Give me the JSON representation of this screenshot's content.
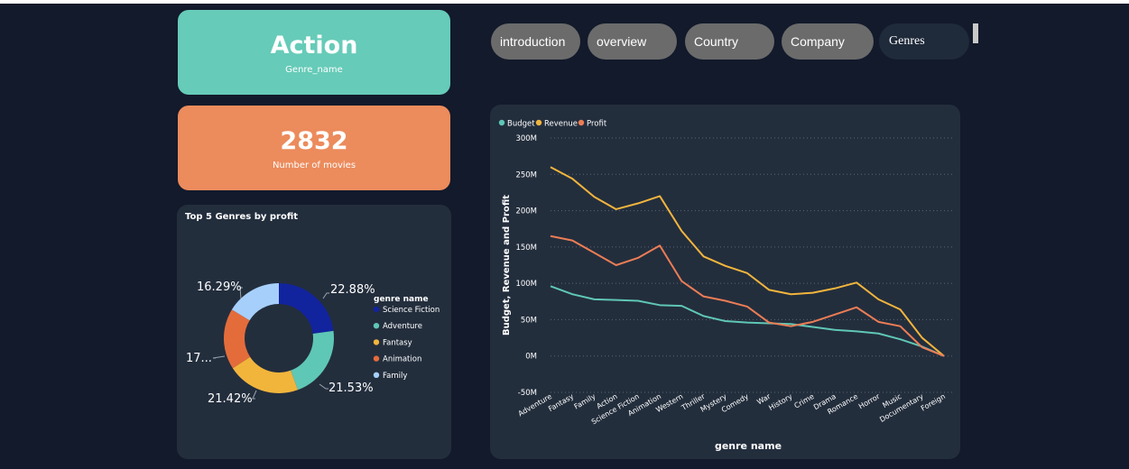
{
  "genre_card": {
    "value": "Action",
    "label": "Genre_name",
    "color": "#66cbb8"
  },
  "movies_card": {
    "value": "2832",
    "label": "Number of movies",
    "color": "#ec8b5c"
  },
  "tabs": [
    {
      "label": "introduction"
    },
    {
      "label": "overview"
    },
    {
      "label": "Country"
    },
    {
      "label": "Company"
    },
    {
      "label": "Genres"
    }
  ],
  "colors": {
    "background": "#121a2b",
    "panel": "#232e3d",
    "tab": "#6b6b6b",
    "tab_active": "#1f2a3a"
  },
  "chart_data": [
    {
      "type": "pie",
      "title": "Top 5 Genres by profit",
      "legend_title": "genre name",
      "legend_position": "right",
      "categories": [
        "Science Fiction",
        "Adventure",
        "Fantasy",
        "Animation",
        "Family"
      ],
      "values": [
        22.88,
        21.53,
        21.42,
        17.88,
        16.29
      ],
      "value_labels": [
        "22.88%",
        "21.53%",
        "21.42%",
        "17...",
        "16.29%"
      ],
      "colors": [
        "#12239e",
        "#5fc7b6",
        "#f2b53c",
        "#e46c3b",
        "#a7cffb"
      ]
    },
    {
      "type": "line",
      "title": "",
      "xlabel": "genre name",
      "ylabel": "Budget, Revenue and Profit",
      "ylim": [
        -50,
        300
      ],
      "y_ticks": [
        "300M",
        "250M",
        "200M",
        "150M",
        "100M",
        "50M",
        "0M",
        "-50M"
      ],
      "grid": true,
      "legend_position": "top-left",
      "categories": [
        "Adventure",
        "Fantasy",
        "Family",
        "Action",
        "Science Fiction",
        "Animation",
        "Western",
        "Thriller",
        "Mystery",
        "Comedy",
        "War",
        "History",
        "Crime",
        "Drama",
        "Romance",
        "Horror",
        "Music",
        "Documentary",
        "Foreign"
      ],
      "series": [
        {
          "name": "Budget",
          "color": "#5fc7b6",
          "values": [
            96,
            85,
            78,
            77,
            76,
            70,
            69,
            55,
            48,
            46,
            45,
            44,
            40,
            36,
            34,
            31,
            23,
            13,
            0
          ]
        },
        {
          "name": "Revenue",
          "color": "#f2b53c",
          "values": [
            260,
            244,
            219,
            202,
            210,
            220,
            172,
            137,
            124,
            114,
            91,
            85,
            87,
            93,
            101,
            78,
            64,
            25,
            0
          ]
        },
        {
          "name": "Profit",
          "color": "#ec7d55",
          "values": [
            165,
            159,
            142,
            125,
            135,
            152,
            103,
            82,
            76,
            68,
            46,
            41,
            47,
            57,
            67,
            47,
            41,
            12,
            0
          ]
        }
      ]
    }
  ]
}
